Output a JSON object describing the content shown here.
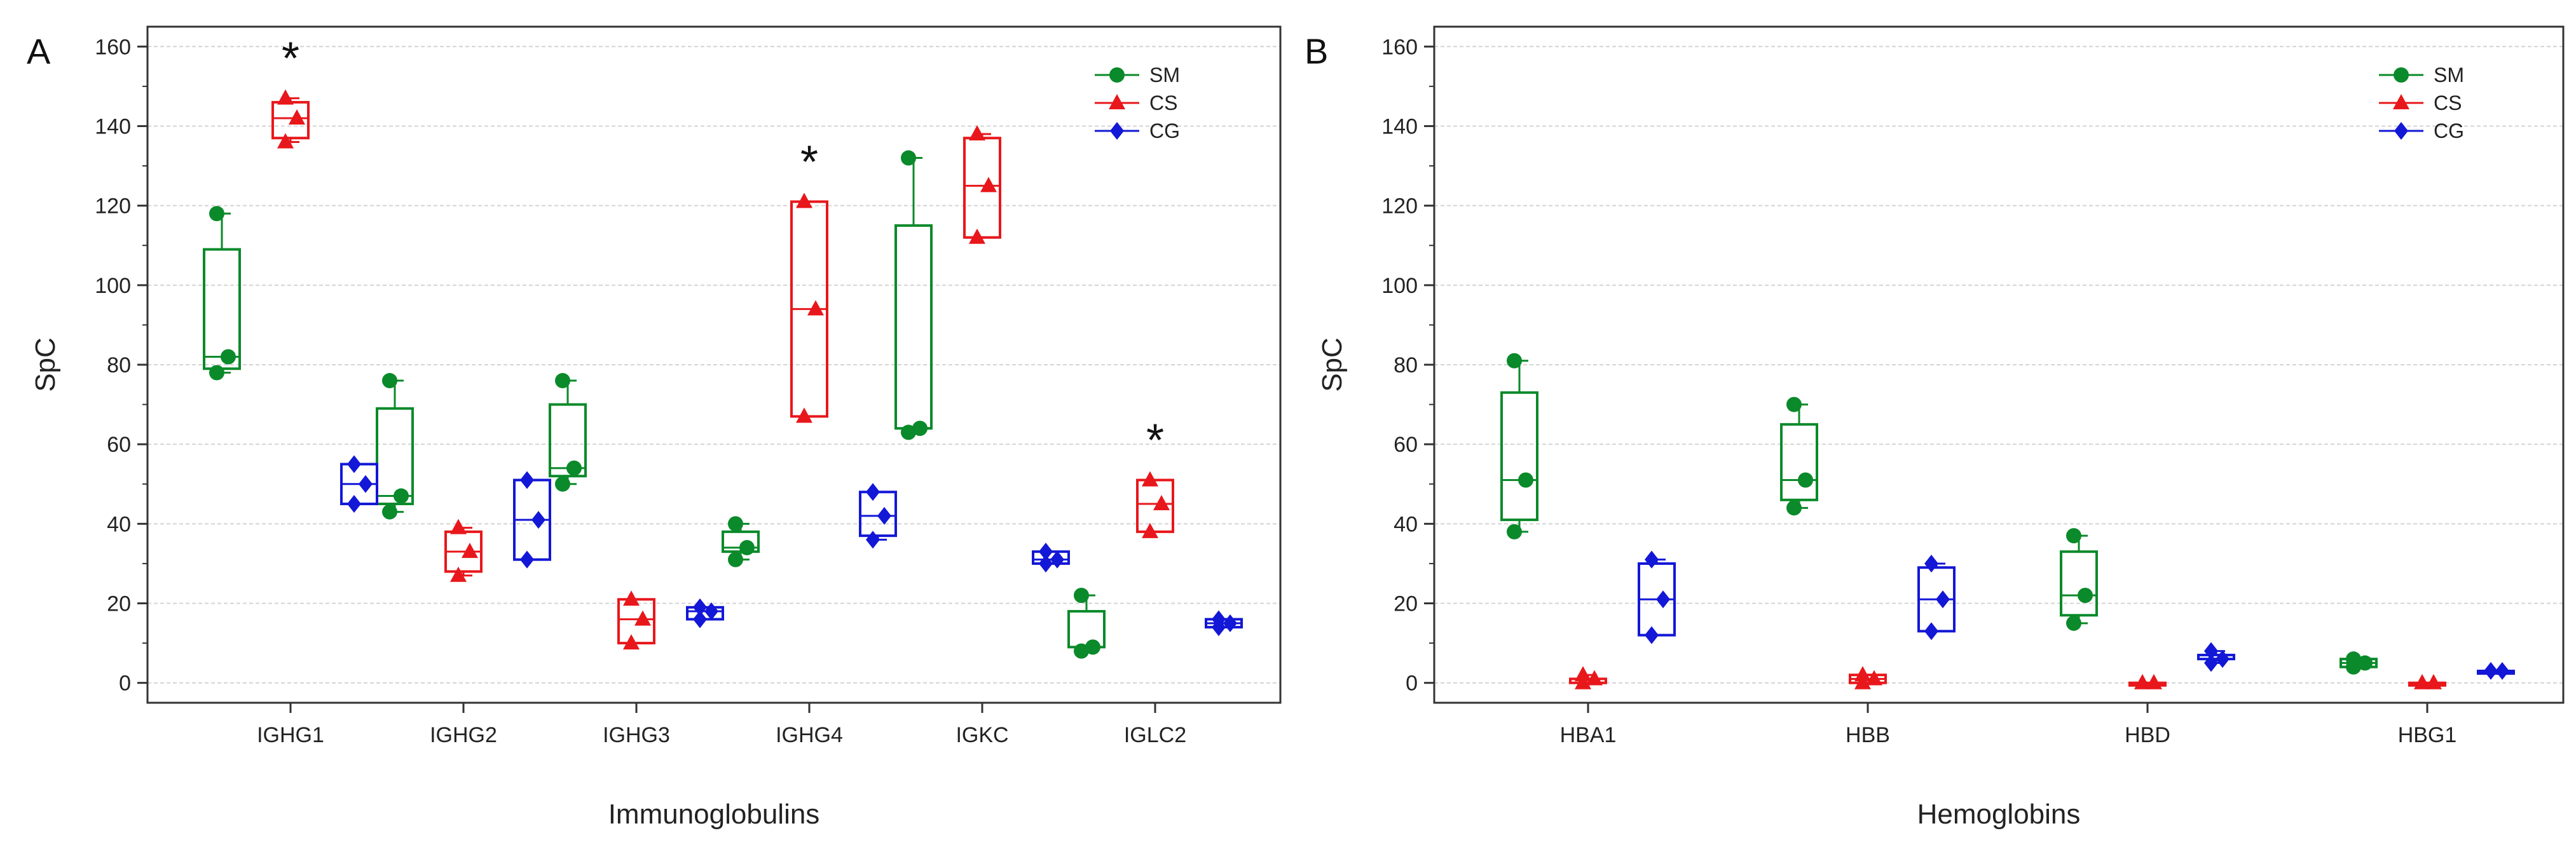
{
  "chart_data": [
    {
      "type": "box",
      "panel_label": "A",
      "xlabel": "Immunoglobulins",
      "ylabel": "SpC",
      "ylim": [
        -5,
        165
      ],
      "yticks": [
        0,
        20,
        40,
        60,
        80,
        100,
        120,
        140,
        160
      ],
      "grid": true,
      "legend_position": "top-right",
      "categories": [
        "IGHG1",
        "IGHG2",
        "IGHG3",
        "IGHG4",
        "IGKC",
        "IGLC2"
      ],
      "significant": [
        "IGHG1",
        "IGHG4",
        "IGLC2"
      ],
      "significance_marker": "*",
      "series": [
        {
          "name": "SM",
          "color": "#0a8a2a",
          "marker": "circle",
          "groups": [
            {
              "min": 78,
              "q1": 79,
              "median": 82,
              "q3": 109,
              "max": 118,
              "points": [
                78,
                82,
                118
              ]
            },
            {
              "min": 43,
              "q1": 45,
              "median": 47,
              "q3": 69,
              "max": 76,
              "points": [
                43,
                47,
                76
              ]
            },
            {
              "min": 50,
              "q1": 52,
              "median": 54,
              "q3": 70,
              "max": 76,
              "points": [
                50,
                54,
                76
              ]
            },
            {
              "min": 31,
              "q1": 33,
              "median": 34,
              "q3": 38,
              "max": 40,
              "points": [
                31,
                34,
                40
              ]
            },
            {
              "min": 63,
              "q1": 64,
              "median": 64,
              "q3": 115,
              "max": 132,
              "points": [
                63,
                64,
                132
              ]
            },
            {
              "min": 8,
              "q1": 9,
              "median": 9,
              "q3": 18,
              "max": 22,
              "points": [
                8,
                9,
                22
              ]
            }
          ]
        },
        {
          "name": "CS",
          "color": "#e8171b",
          "marker": "triangle",
          "groups": [
            {
              "min": 136,
              "q1": 137,
              "median": 142,
              "q3": 146,
              "max": 147,
              "points": [
                136,
                142,
                147
              ]
            },
            {
              "min": 27,
              "q1": 28,
              "median": 33,
              "q3": 38,
              "max": 39,
              "points": [
                27,
                33,
                39
              ]
            },
            {
              "min": 10,
              "q1": 10,
              "median": 16,
              "q3": 21,
              "max": 21,
              "points": [
                10,
                16,
                21
              ]
            },
            {
              "min": 67,
              "q1": 67,
              "median": 94,
              "q3": 121,
              "max": 121,
              "points": [
                67,
                94,
                121
              ]
            },
            {
              "min": 112,
              "q1": 112,
              "median": 125,
              "q3": 137,
              "max": 138,
              "points": [
                112,
                125,
                138
              ]
            },
            {
              "min": 38,
              "q1": 38,
              "median": 45,
              "q3": 51,
              "max": 51,
              "points": [
                38,
                45,
                51
              ]
            }
          ]
        },
        {
          "name": "CG",
          "color": "#1317d6",
          "marker": "diamond",
          "groups": [
            {
              "min": 45,
              "q1": 45,
              "median": 50,
              "q3": 55,
              "max": 55,
              "points": [
                45,
                50,
                55
              ]
            },
            {
              "min": 31,
              "q1": 31,
              "median": 41,
              "q3": 51,
              "max": 51,
              "points": [
                31,
                41,
                51
              ]
            },
            {
              "min": 16,
              "q1": 16,
              "median": 18,
              "q3": 19,
              "max": 19,
              "points": [
                16,
                18,
                19
              ]
            },
            {
              "min": 36,
              "q1": 37,
              "median": 42,
              "q3": 48,
              "max": 48,
              "points": [
                36,
                42,
                48
              ]
            },
            {
              "min": 30,
              "q1": 30,
              "median": 31,
              "q3": 33,
              "max": 33,
              "points": [
                30,
                31,
                33
              ]
            },
            {
              "min": 14,
              "q1": 14,
              "median": 15,
              "q3": 16,
              "max": 16,
              "points": [
                14,
                15,
                16
              ]
            }
          ]
        }
      ]
    },
    {
      "type": "box",
      "panel_label": "B",
      "xlabel": "Hemoglobins",
      "ylabel": "SpC",
      "ylim": [
        -5,
        165
      ],
      "yticks": [
        0,
        20,
        40,
        60,
        80,
        100,
        120,
        140,
        160
      ],
      "grid": true,
      "legend_position": "top-right",
      "categories": [
        "HBA1",
        "HBB",
        "HBD",
        "HBG1"
      ],
      "significant": [],
      "significance_marker": "*",
      "series": [
        {
          "name": "SM",
          "color": "#0a8a2a",
          "marker": "circle",
          "groups": [
            {
              "min": 38,
              "q1": 41,
              "median": 51,
              "q3": 73,
              "max": 81,
              "points": [
                38,
                51,
                81
              ]
            },
            {
              "min": 44,
              "q1": 46,
              "median": 51,
              "q3": 65,
              "max": 70,
              "points": [
                44,
                51,
                70
              ]
            },
            {
              "min": 15,
              "q1": 17,
              "median": 22,
              "q3": 33,
              "max": 37,
              "points": [
                15,
                22,
                37
              ]
            },
            {
              "min": 4,
              "q1": 4,
              "median": 5,
              "q3": 6,
              "max": 6,
              "points": [
                4,
                5,
                6
              ]
            }
          ]
        },
        {
          "name": "CS",
          "color": "#e8171b",
          "marker": "triangle",
          "groups": [
            {
              "min": 0,
              "q1": 0,
              "median": 1,
              "q3": 1,
              "max": 2,
              "points": [
                0,
                1,
                2
              ]
            },
            {
              "min": 0,
              "q1": 0,
              "median": 1,
              "q3": 2,
              "max": 2,
              "points": [
                0,
                1,
                2
              ]
            },
            {
              "min": 0,
              "q1": 0,
              "median": 0,
              "q3": 0,
              "max": 0,
              "points": [
                0,
                0
              ]
            },
            {
              "min": 0,
              "q1": 0,
              "median": 0,
              "q3": 0,
              "max": 0,
              "points": [
                0,
                0
              ]
            }
          ]
        },
        {
          "name": "CG",
          "color": "#1317d6",
          "marker": "diamond",
          "groups": [
            {
              "min": 12,
              "q1": 12,
              "median": 21,
              "q3": 30,
              "max": 31,
              "points": [
                12,
                21,
                31
              ]
            },
            {
              "min": 13,
              "q1": 13,
              "median": 21,
              "q3": 29,
              "max": 30,
              "points": [
                13,
                21,
                30
              ]
            },
            {
              "min": 5,
              "q1": 6,
              "median": 6,
              "q3": 7,
              "max": 8,
              "points": [
                5,
                6,
                8
              ]
            },
            {
              "min": 3,
              "q1": 3,
              "median": 3,
              "q3": 3,
              "max": 3,
              "points": [
                3,
                3
              ]
            }
          ]
        }
      ]
    }
  ]
}
